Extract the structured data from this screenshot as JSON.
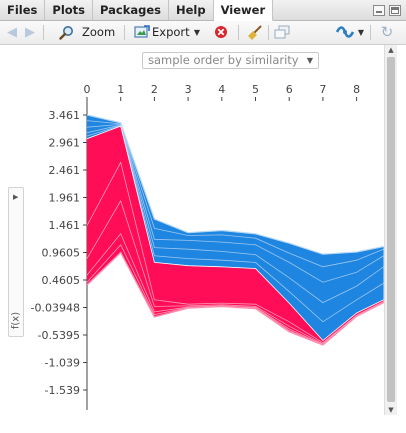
{
  "tabs": [
    {
      "label": "Files",
      "active": false
    },
    {
      "label": "Plots",
      "active": false
    },
    {
      "label": "Packages",
      "active": false
    },
    {
      "label": "Help",
      "active": false
    },
    {
      "label": "Viewer",
      "active": true
    }
  ],
  "toolbar": {
    "zoom_label": "Zoom",
    "export_label": "Export"
  },
  "order_select": {
    "value": "sample order by similarity"
  },
  "side_panel": {
    "label": "f(x)"
  },
  "colors": {
    "accent_blue": "#1e86e0",
    "accent_red": "#ff0d57",
    "axis": "#444444"
  },
  "chart_data": {
    "type": "area",
    "title": "",
    "ylabel": "f(x)",
    "x_ticks": [
      "0",
      "1",
      "2",
      "3",
      "4",
      "5",
      "6",
      "7",
      "8"
    ],
    "x_range": [
      0,
      8.8
    ],
    "y_ticks": [
      "3.461",
      "2.961",
      "2.461",
      "1.961",
      "1.461",
      "0.9605",
      "0.4605",
      "-0.03948",
      "-0.5395",
      "-1.039",
      "-1.539"
    ],
    "y_range": [
      -1.85,
      3.75
    ],
    "base_value": 0.4605,
    "top_output": [
      3.461,
      3.32,
      1.57,
      1.32,
      1.36,
      1.3,
      1.13,
      0.93,
      0.97,
      1.07
    ],
    "bottom_output": [
      0.37,
      0.96,
      -0.21,
      -0.05,
      -0.02,
      -0.06,
      -0.48,
      -0.72,
      -0.2,
      0.05
    ],
    "boundary": [
      3.03,
      3.26,
      0.78,
      0.72,
      0.7,
      0.67,
      0.04,
      -0.64,
      -0.14,
      0.1
    ],
    "x_values": [
      0,
      1,
      2,
      3,
      4,
      5,
      6,
      7,
      8,
      8.8
    ],
    "positive_lines": [
      [
        1.45,
        2.6,
        0.1,
        0.02,
        0.04,
        0.02,
        -0.3,
        -0.68,
        -0.18,
        0.07
      ],
      [
        0.85,
        1.9,
        -0.02,
        -0.01,
        0.01,
        -0.02,
        -0.38,
        -0.7,
        -0.19,
        0.06
      ],
      [
        0.55,
        1.3,
        -0.12,
        -0.03,
        -0.01,
        -0.04,
        -0.43,
        -0.71,
        -0.19,
        0.06
      ],
      [
        0.42,
        1.1,
        -0.17,
        -0.04,
        -0.02,
        -0.05,
        -0.46,
        -0.72,
        -0.2,
        0.05
      ]
    ],
    "negative_lines": [
      [
        3.36,
        3.3,
        1.4,
        1.27,
        1.28,
        1.22,
        0.95,
        0.7,
        0.82,
        1.02
      ],
      [
        3.24,
        3.29,
        1.2,
        1.18,
        1.15,
        1.1,
        0.78,
        0.42,
        0.6,
        0.9
      ],
      [
        3.14,
        3.28,
        1.05,
        1.02,
        0.98,
        0.92,
        0.5,
        0.05,
        0.35,
        0.7
      ],
      [
        3.08,
        3.27,
        0.9,
        0.85,
        0.82,
        0.78,
        0.25,
        -0.3,
        0.1,
        0.4
      ]
    ]
  }
}
